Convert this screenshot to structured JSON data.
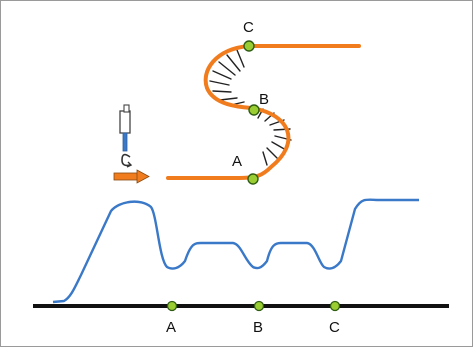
{
  "labels": {
    "top_a": "A",
    "top_b": "B",
    "top_c": "C",
    "axis_a": "A",
    "axis_b": "B",
    "axis_c": "C"
  },
  "icons": [
    "tip-icon",
    "rotation-icon",
    "arrow-right-icon"
  ],
  "colors": {
    "strand": "#f07c1e",
    "rungs": "#222222",
    "trace": "#3a78c8",
    "axis": "#111111",
    "marker_fill": "#9acd32",
    "marker_stroke": "#2f5e12",
    "arrow": "#f07c1e",
    "probe": "#3a78c8"
  }
}
